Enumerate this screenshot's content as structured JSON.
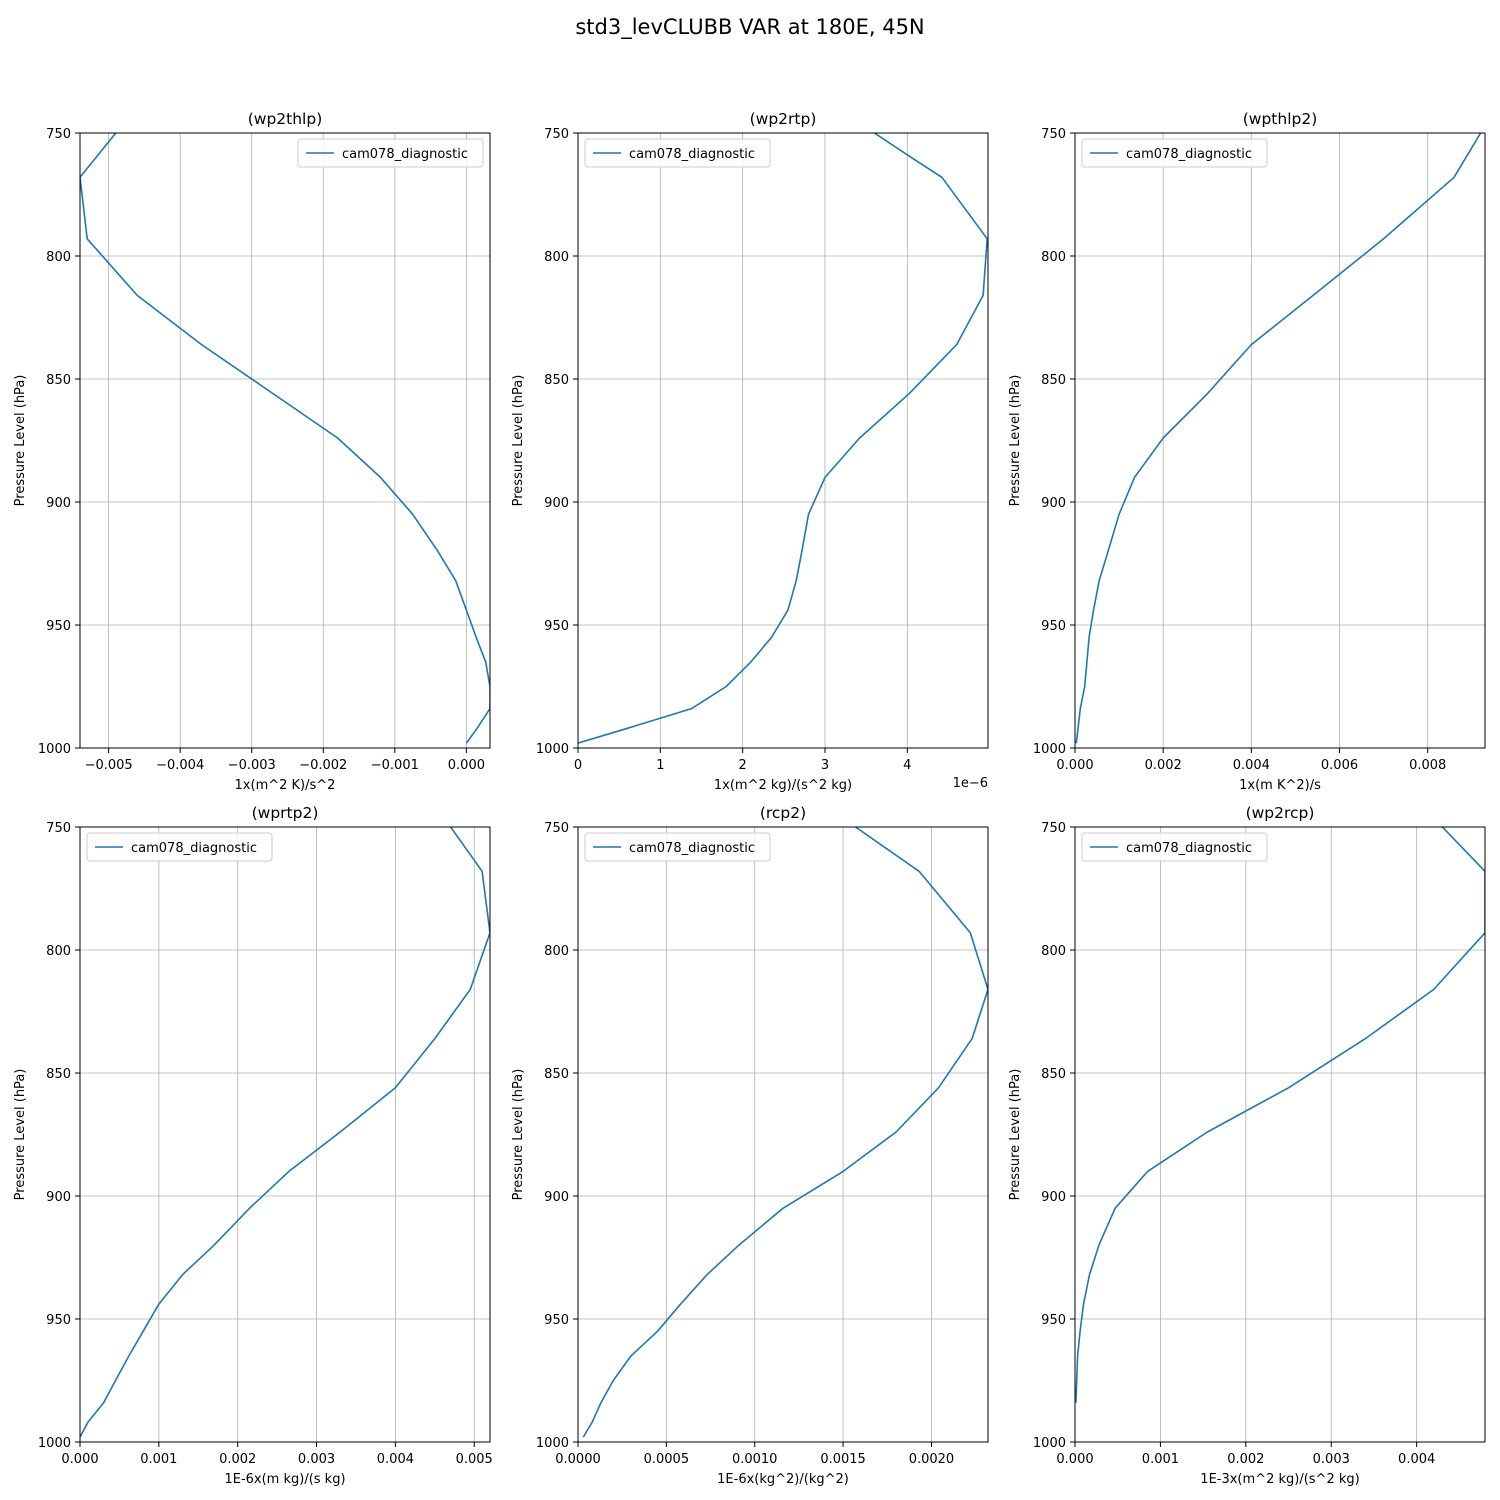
{
  "figure": {
    "title": "std3_levCLUBB VAR at 180E, 45N",
    "line_color": "#1f77b4"
  },
  "chart_data": [
    {
      "type": "line",
      "title": "(wp2thlp)",
      "xlabel": "1x(m^2 K)/s^2",
      "ylabel": "Pressure Level (hPa)",
      "xlim": [
        -0.0054,
        0.00033
      ],
      "ylim": [
        1000,
        750
      ],
      "y_inverted": true,
      "grid": true,
      "legend": "top-right",
      "x_offset_text": "",
      "x_ticks": [
        -0.005,
        -0.004,
        -0.003,
        -0.002,
        -0.001,
        0.0
      ],
      "x_tick_labels": [
        "−0.005",
        "−0.004",
        "−0.003",
        "−0.002",
        "−0.001",
        "0.000"
      ],
      "y_ticks": [
        750,
        800,
        850,
        900,
        950,
        1000
      ],
      "series": [
        {
          "name": "cam078_diagnostic",
          "x": [
            -0.0049,
            -0.0054,
            -0.0053,
            -0.0046,
            -0.0037,
            -0.0018,
            -0.0012,
            -0.00075,
            -0.0004,
            -0.00015,
            0.0,
            0.00015,
            0.00027,
            0.00033,
            0.00033,
            0.00015,
            0.0
          ],
          "y": [
            750,
            768,
            793,
            816,
            836,
            874,
            890,
            905,
            920,
            932,
            944,
            956,
            965,
            975,
            984,
            992,
            998
          ]
        }
      ]
    },
    {
      "type": "line",
      "title": "(wp2rtp)",
      "xlabel": "1x(m^2 kg)/(s^2 kg)",
      "ylabel": "Pressure Level (hPa)",
      "xlim": [
        0,
        4.98
      ],
      "ylim": [
        1000,
        750
      ],
      "y_inverted": true,
      "grid": true,
      "legend": "top-left",
      "x_offset_text": "1e−6",
      "x_ticks": [
        0,
        1,
        2,
        3,
        4
      ],
      "x_tick_labels": [
        "0",
        "1",
        "2",
        "3",
        "4"
      ],
      "y_ticks": [
        750,
        800,
        850,
        900,
        950,
        1000
      ],
      "series": [
        {
          "name": "cam078_diagnostic",
          "x": [
            3.6,
            4.05,
            4.42,
            4.97,
            4.92,
            4.6,
            4.02,
            3.42,
            3.0,
            2.8,
            2.72,
            2.65,
            2.55,
            2.35,
            2.1,
            1.8,
            1.38,
            0.6,
            0.0
          ],
          "y": [
            750,
            760,
            768,
            793,
            816,
            836,
            856,
            874,
            890,
            905,
            920,
            932,
            944,
            955,
            965,
            975,
            984,
            992,
            998
          ]
        }
      ]
    },
    {
      "type": "line",
      "title": "(wpthlp2)",
      "xlabel": "1x(m K^2)/s",
      "ylabel": "Pressure Level (hPa)",
      "xlim": [
        0,
        0.0093
      ],
      "ylim": [
        1000,
        750
      ],
      "y_inverted": true,
      "grid": true,
      "legend": "top-left",
      "x_offset_text": "",
      "x_ticks": [
        0.0,
        0.002,
        0.004,
        0.006,
        0.008
      ],
      "x_tick_labels": [
        "0.000",
        "0.002",
        "0.004",
        "0.006",
        "0.008"
      ],
      "y_ticks": [
        750,
        800,
        850,
        900,
        950,
        1000
      ],
      "series": [
        {
          "name": "cam078_diagnostic",
          "x": [
            0.0092,
            0.0086,
            0.007,
            0.0054,
            0.004,
            0.003,
            0.002,
            0.00135,
            0.001,
            0.00075,
            0.00055,
            0.00042,
            0.00032,
            0.00022,
            0.00012,
            3e-05
          ],
          "y": [
            750,
            768,
            793,
            816,
            836,
            856,
            874,
            890,
            905,
            920,
            932,
            944,
            955,
            975,
            984,
            998
          ]
        }
      ]
    },
    {
      "type": "line",
      "title": "(wprtp2)",
      "xlabel": "1E-6x(m kg)/(s kg)",
      "ylabel": "Pressure Level (hPa)",
      "xlim": [
        0,
        0.0052
      ],
      "ylim": [
        1000,
        750
      ],
      "y_inverted": true,
      "grid": true,
      "legend": "top-left",
      "x_offset_text": "",
      "x_ticks": [
        0.0,
        0.001,
        0.002,
        0.003,
        0.004,
        0.005
      ],
      "x_tick_labels": [
        "0.000",
        "0.001",
        "0.002",
        "0.003",
        "0.004",
        "0.005"
      ],
      "y_ticks": [
        750,
        800,
        850,
        900,
        950,
        1000
      ],
      "series": [
        {
          "name": "cam078_diagnostic",
          "x": [
            0.0047,
            0.0051,
            0.0052,
            0.00495,
            0.0045,
            0.004,
            0.0033,
            0.00265,
            0.00215,
            0.0017,
            0.0013,
            0.001,
            0.0008,
            0.00062,
            0.00045,
            0.0003,
            0.0001,
            0.0
          ],
          "y": [
            750,
            768,
            793,
            816,
            836,
            856,
            874,
            890,
            905,
            920,
            932,
            944,
            955,
            965,
            975,
            984,
            992,
            998
          ]
        }
      ]
    },
    {
      "type": "line",
      "title": "(rcp2)",
      "xlabel": "1E-6x(kg^2)/(kg^2)",
      "ylabel": "Pressure Level (hPa)",
      "xlim": [
        0,
        0.00232
      ],
      "ylim": [
        1000,
        750
      ],
      "y_inverted": true,
      "grid": true,
      "legend": "top-left",
      "x_offset_text": "",
      "x_ticks": [
        0.0,
        0.0005,
        0.001,
        0.0015,
        0.002
      ],
      "x_tick_labels": [
        "0.0000",
        "0.0005",
        "0.0010",
        "0.0015",
        "0.0020"
      ],
      "y_ticks": [
        750,
        800,
        850,
        900,
        950,
        1000
      ],
      "series": [
        {
          "name": "cam078_diagnostic",
          "x": [
            0.00157,
            0.00193,
            0.00222,
            0.00232,
            0.00223,
            0.00204,
            0.0018,
            0.0015,
            0.00116,
            0.00091,
            0.00073,
            0.00058,
            0.00045,
            0.0003,
            0.0002,
            0.00013,
            8e-05,
            3e-05
          ],
          "y": [
            750,
            768,
            793,
            816,
            836,
            856,
            874,
            890,
            905,
            920,
            932,
            944,
            955,
            965,
            975,
            984,
            992,
            998
          ]
        }
      ]
    },
    {
      "type": "line",
      "title": "(wp2rcp)",
      "xlabel": "1E-3x(m^2 kg)/(s^2 kg)",
      "ylabel": "Pressure Level (hPa)",
      "xlim": [
        0,
        0.0048
      ],
      "ylim": [
        1000,
        750
      ],
      "y_inverted": true,
      "grid": true,
      "legend": "top-left",
      "x_offset_text": "",
      "x_ticks": [
        0.0,
        0.001,
        0.002,
        0.003,
        0.004
      ],
      "x_tick_labels": [
        "0.000",
        "0.001",
        "0.002",
        "0.003",
        "0.004"
      ],
      "y_ticks": [
        750,
        800,
        850,
        900,
        950,
        1000
      ],
      "series": [
        {
          "name": "cam078_diagnostic",
          "x": [
            0.0043,
            0.0048,
            0.0048,
            0.0042,
            0.0034,
            0.0025,
            0.00155,
            0.00085,
            0.00047,
            0.00028,
            0.00017,
            0.0001,
            6e-05,
            3e-05,
            1e-05
          ],
          "y": [
            750,
            768,
            793,
            816,
            836,
            856,
            874,
            890,
            905,
            920,
            932,
            944,
            955,
            965,
            984
          ]
        }
      ]
    }
  ]
}
